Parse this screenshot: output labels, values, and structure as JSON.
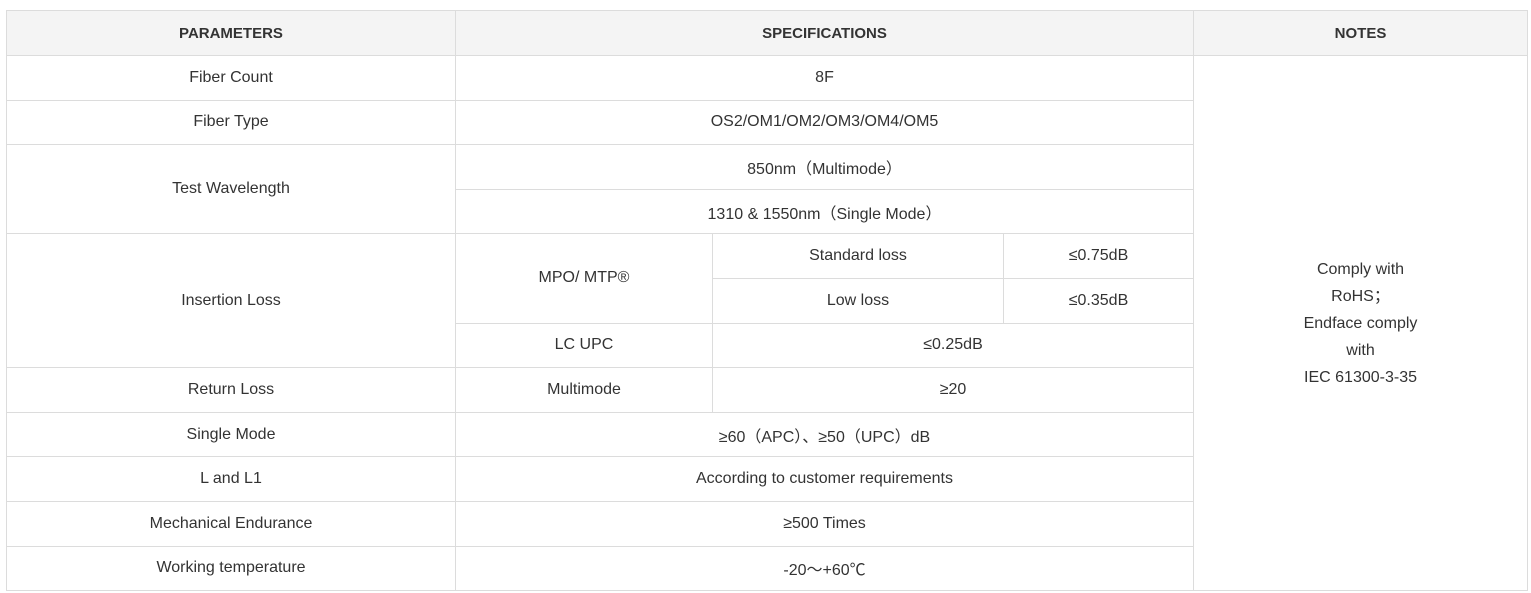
{
  "headers": {
    "parameters": "PARAMETERS",
    "specifications": "SPECIFICATIONS",
    "notes": "NOTES"
  },
  "rows": {
    "fiber_count": {
      "label": "Fiber Count",
      "value": "8F"
    },
    "fiber_type": {
      "label": "Fiber Type",
      "value": "OS2/OM1/OM2/OM3/OM4/OM5"
    },
    "test_wavelength": {
      "label": "Test Wavelength",
      "multimode": "850nm（Multimode）",
      "single_mode": "1310 & 1550nm（Single Mode）"
    },
    "insertion_loss": {
      "label": "Insertion Loss",
      "mpo_label": "MPO/ MTP®",
      "standard_label": "Standard loss",
      "standard_value": "≤0.75dB",
      "low_label": "Low loss",
      "low_value": "≤0.35dB",
      "lc_label": "LC UPC",
      "lc_value": "≤0.25dB"
    },
    "return_loss": {
      "label": "Return Loss",
      "sub_label": "Multimode",
      "value": "≥20"
    },
    "single_mode": {
      "label": "Single Mode",
      "value": "≥60（APC）、≥50（UPC）dB"
    },
    "l_and_l1": {
      "label": "L and L1",
      "value": "According to customer requirements"
    },
    "mechanical": {
      "label": "Mechanical Endurance",
      "value": "≥500 Times"
    },
    "working_temp": {
      "label": "Working temperature",
      "value": "-20～+60℃"
    }
  },
  "notes": [
    "Comply with",
    "RoHS；",
    "Endface comply",
    "with",
    "IEC 61300-3-35"
  ]
}
